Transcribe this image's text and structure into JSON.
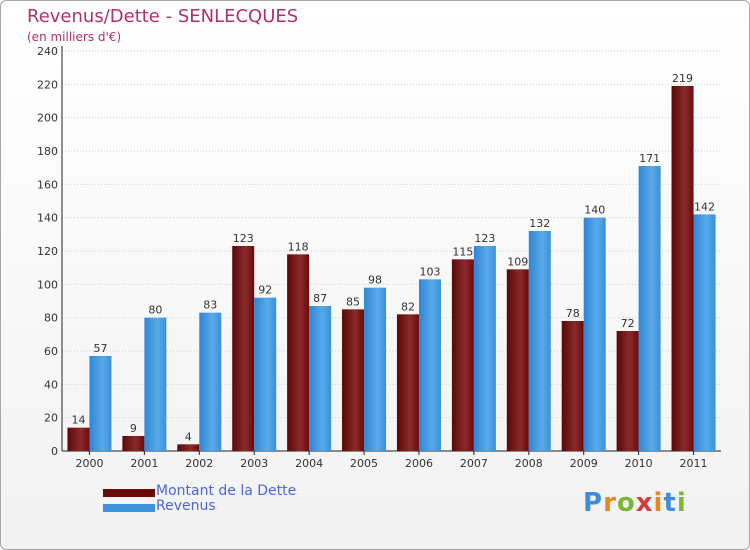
{
  "header": {
    "title": "Revenus/Dette - SENLECQUES",
    "subtitle": "(en milliers d'€)"
  },
  "colors": {
    "dette": "#6b0a0a",
    "revenus": "#3c93dc",
    "title": "#b0306a",
    "legend_text": "#4a66e0"
  },
  "chart_data": {
    "type": "bar",
    "title": "Revenus/Dette - SENLECQUES",
    "ylabel": "(en milliers d'€)",
    "xlabel": "",
    "ylim": [
      0,
      240
    ],
    "yticks": [
      0,
      20,
      40,
      60,
      80,
      100,
      120,
      140,
      160,
      180,
      200,
      220,
      240
    ],
    "grid": "horizontal",
    "legend_position": "bottom-left",
    "categories": [
      "2000",
      "2001",
      "2002",
      "2003",
      "2004",
      "2005",
      "2006",
      "2007",
      "2008",
      "2009",
      "2010",
      "2011"
    ],
    "series": [
      {
        "name": "Montant de la Dette",
        "color": "#6b0a0a",
        "values": [
          14,
          9,
          4,
          123,
          118,
          85,
          82,
          115,
          109,
          78,
          72,
          219
        ]
      },
      {
        "name": "Revenus",
        "color": "#3c93dc",
        "values": [
          57,
          80,
          83,
          92,
          87,
          98,
          103,
          123,
          132,
          140,
          171,
          142
        ]
      }
    ]
  },
  "legend": {
    "items": [
      {
        "label": "Montant de la Dette"
      },
      {
        "label": "Revenus"
      }
    ]
  },
  "logo": {
    "text": "Proxiti"
  }
}
